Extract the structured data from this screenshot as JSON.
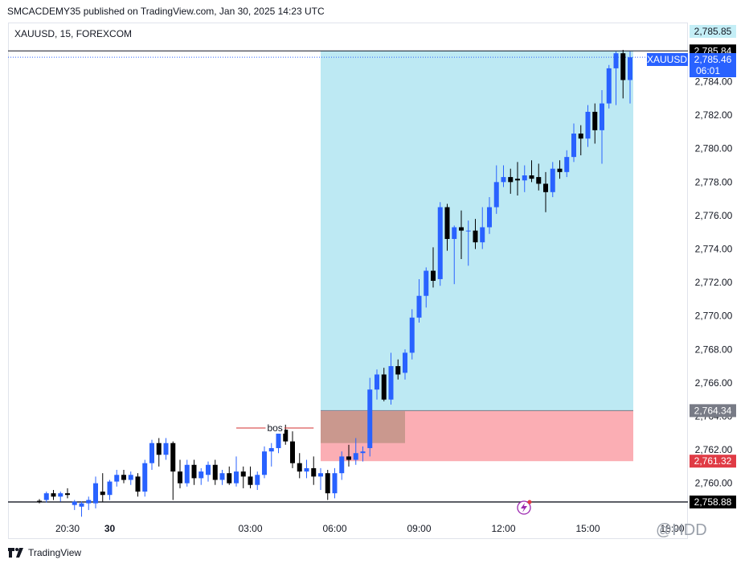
{
  "header": {
    "published": "SMCACDEMY35 published on TradingView.com, Jan 30, 2025 14:23 UTC",
    "symbol_line": "XAUUSD, 15, FOREXCOM"
  },
  "footer": {
    "brand": "TradingView"
  },
  "watermark": "@HDD",
  "chart_data": {
    "type": "candlestick",
    "symbol": "XAUUSD",
    "interval": "15",
    "ylim": [
      2758.3,
      2787.2
    ],
    "x_start": "19:30",
    "x_step_minutes": 15,
    "x_ticks": [
      {
        "label": "20:30",
        "i": 4
      },
      {
        "label": "30",
        "i": 10
      },
      {
        "label": "03:00",
        "i": 30
      },
      {
        "label": "06:00",
        "i": 42
      },
      {
        "label": "09:00",
        "i": 54
      },
      {
        "label": "12:00",
        "i": 66
      },
      {
        "label": "15:00",
        "i": 78
      },
      {
        "label": "18:00",
        "i": 90
      }
    ],
    "y_ticks": [
      "2,760.00",
      "2,762.00",
      "2,764.00",
      "2,766.00",
      "2,768.00",
      "2,770.00",
      "2,772.00",
      "2,774.00",
      "2,776.00",
      "2,778.00",
      "2,780.00",
      "2,782.00",
      "2,784.00"
    ],
    "up_color": "#2962ff",
    "down_color": "#000000",
    "candles": [
      [
        2758.95,
        2759.05,
        2758.8,
        2758.9
      ],
      [
        2759.0,
        2759.5,
        2758.85,
        2759.4
      ],
      [
        2759.4,
        2759.6,
        2759.0,
        2759.2
      ],
      [
        2759.2,
        2759.5,
        2758.9,
        2759.4
      ],
      [
        2759.4,
        2759.7,
        2759.1,
        2759.3
      ],
      [
        2758.7,
        2759.0,
        2758.4,
        2758.9
      ],
      [
        2758.6,
        2758.9,
        2758.0,
        2758.8
      ],
      [
        2758.8,
        2759.2,
        2758.4,
        2759.0
      ],
      [
        2758.8,
        2760.4,
        2758.5,
        2760.0
      ],
      [
        2759.5,
        2760.6,
        2758.9,
        2759.3
      ],
      [
        2759.3,
        2760.2,
        2759.0,
        2760.1
      ],
      [
        2760.1,
        2760.8,
        2759.8,
        2760.5
      ],
      [
        2760.5,
        2760.8,
        2760.0,
        2760.2
      ],
      [
        2760.2,
        2760.7,
        2759.9,
        2760.5
      ],
      [
        2760.4,
        2760.6,
        2759.2,
        2759.5
      ],
      [
        2759.5,
        2761.4,
        2759.2,
        2761.2
      ],
      [
        2761.2,
        2762.6,
        2760.8,
        2762.4
      ],
      [
        2762.4,
        2762.7,
        2761.0,
        2761.7
      ],
      [
        2761.7,
        2762.7,
        2761.4,
        2762.4
      ],
      [
        2762.4,
        2762.5,
        2759.0,
        2760.7
      ],
      [
        2760.7,
        2761.4,
        2759.7,
        2760.0
      ],
      [
        2760.0,
        2761.4,
        2759.8,
        2761.1
      ],
      [
        2761.1,
        2761.4,
        2759.9,
        2760.3
      ],
      [
        2760.3,
        2760.9,
        2759.9,
        2760.7
      ],
      [
        2760.5,
        2761.3,
        2760.1,
        2761.1
      ],
      [
        2761.1,
        2761.4,
        2759.9,
        2760.2
      ],
      [
        2760.2,
        2760.8,
        2759.9,
        2760.6
      ],
      [
        2760.6,
        2761.0,
        2759.9,
        2760.0
      ],
      [
        2760.0,
        2761.6,
        2759.8,
        2760.7
      ],
      [
        2760.7,
        2761.0,
        2759.7,
        2760.4
      ],
      [
        2760.4,
        2761.0,
        2759.7,
        2759.9
      ],
      [
        2759.9,
        2760.7,
        2759.6,
        2760.5
      ],
      [
        2760.5,
        2762.2,
        2760.3,
        2761.9
      ],
      [
        2761.9,
        2762.4,
        2761.0,
        2762.1
      ],
      [
        2762.1,
        2763.3,
        2761.8,
        2763.2
      ],
      [
        2763.2,
        2763.5,
        2762.3,
        2762.5
      ],
      [
        2762.5,
        2763.1,
        2760.9,
        2761.2
      ],
      [
        2761.2,
        2761.8,
        2760.3,
        2760.7
      ],
      [
        2760.7,
        2761.4,
        2760.3,
        2760.9
      ],
      [
        2760.9,
        2761.6,
        2759.9,
        2760.4
      ],
      [
        2760.4,
        2760.9,
        2759.6,
        2760.6
      ],
      [
        2760.6,
        2760.8,
        2759.0,
        2759.4
      ],
      [
        2759.4,
        2760.9,
        2759.1,
        2760.6
      ],
      [
        2760.6,
        2761.9,
        2760.2,
        2761.6
      ],
      [
        2761.6,
        2762.3,
        2761.0,
        2761.4
      ],
      [
        2761.4,
        2762.7,
        2761.1,
        2761.8
      ],
      [
        2761.8,
        2762.2,
        2761.3,
        2761.9
      ],
      [
        2762.1,
        2766.3,
        2761.6,
        2765.6
      ],
      [
        2765.6,
        2766.8,
        2765.0,
        2766.5
      ],
      [
        2766.5,
        2766.9,
        2764.9,
        2765.0
      ],
      [
        2765.0,
        2767.8,
        2764.7,
        2767.0
      ],
      [
        2767.0,
        2767.4,
        2766.2,
        2766.5
      ],
      [
        2766.6,
        2768.0,
        2766.2,
        2767.8
      ],
      [
        2767.8,
        2770.4,
        2767.4,
        2769.9
      ],
      [
        2769.9,
        2772.2,
        2769.6,
        2771.2
      ],
      [
        2771.2,
        2772.9,
        2770.5,
        2772.7
      ],
      [
        2772.7,
        2774.1,
        2771.7,
        2772.1
      ],
      [
        2772.2,
        2776.8,
        2771.8,
        2776.5
      ],
      [
        2776.5,
        2776.7,
        2773.9,
        2774.6
      ],
      [
        2774.6,
        2775.4,
        2771.9,
        2775.3
      ],
      [
        2775.3,
        2776.3,
        2773.4,
        2775.1
      ],
      [
        2775.1,
        2775.7,
        2773.0,
        2775.1
      ],
      [
        2775.1,
        2775.8,
        2774.0,
        2774.4
      ],
      [
        2774.4,
        2776.5,
        2774.0,
        2775.3
      ],
      [
        2775.3,
        2777.1,
        2774.9,
        2776.5
      ],
      [
        2776.5,
        2779.0,
        2776.1,
        2778.0
      ],
      [
        2778.0,
        2779.0,
        2777.7,
        2778.3
      ],
      [
        2778.3,
        2778.8,
        2777.3,
        2778.0
      ],
      [
        2778.2,
        2779.2,
        2777.2,
        2778.1
      ],
      [
        2778.1,
        2779.0,
        2777.4,
        2778.4
      ],
      [
        2778.4,
        2779.3,
        2778.0,
        2778.2
      ],
      [
        2778.3,
        2779.1,
        2777.5,
        2777.9
      ],
      [
        2777.9,
        2778.6,
        2776.2,
        2777.4
      ],
      [
        2777.4,
        2779.2,
        2777.1,
        2778.8
      ],
      [
        2778.8,
        2779.3,
        2778.2,
        2778.6
      ],
      [
        2778.6,
        2779.9,
        2778.3,
        2779.5
      ],
      [
        2779.5,
        2781.5,
        2779.2,
        2780.9
      ],
      [
        2780.9,
        2781.4,
        2779.6,
        2780.6
      ],
      [
        2780.6,
        2782.6,
        2780.1,
        2782.2
      ],
      [
        2782.2,
        2782.7,
        2780.3,
        2781.1
      ],
      [
        2781.1,
        2783.5,
        2779.1,
        2782.7
      ],
      [
        2782.7,
        2785.0,
        2782.4,
        2784.8
      ],
      [
        2784.8,
        2785.8,
        2782.6,
        2785.7
      ],
      [
        2785.7,
        2785.9,
        2783.0,
        2784.1
      ],
      [
        2784.1,
        2785.8,
        2782.7,
        2785.46
      ]
    ]
  },
  "position": {
    "entry": 2764.34,
    "target": 2785.84,
    "stop": 2761.32,
    "target_color": "#bde9f3",
    "stop_color": "#fbaeb4",
    "ob_top": 2764.3,
    "ob_bottom": 2762.4,
    "ob_color": "#c4968a"
  },
  "bos": {
    "label": "bos",
    "price": 2763.3
  },
  "lines": {
    "high_line": 2785.84,
    "low_line": 2758.88
  },
  "price_labels": {
    "p1": {
      "text": "2,785.85",
      "bg": "#c4eef6",
      "fg": "#131722"
    },
    "p2": {
      "text": "2,785.84",
      "bg": "#000000",
      "fg": "#ffffff"
    },
    "p3": {
      "text": "2,785.46",
      "bg": "#2962ff",
      "fg": "#ffffff"
    },
    "p3_time": "06:01",
    "p3_symbol": "XAUUSD",
    "p4": {
      "text": "2,764.34",
      "bg": "#787b86",
      "fg": "#ffffff"
    },
    "p5": {
      "text": "2,761.32",
      "bg": "#e03b45",
      "fg": "#ffffff"
    },
    "p6": {
      "text": "2,758.88",
      "bg": "#000000",
      "fg": "#ffffff"
    }
  },
  "icons": {
    "event_icon": "lightning-icon",
    "brand_icon": "tradingview-logo-icon"
  }
}
